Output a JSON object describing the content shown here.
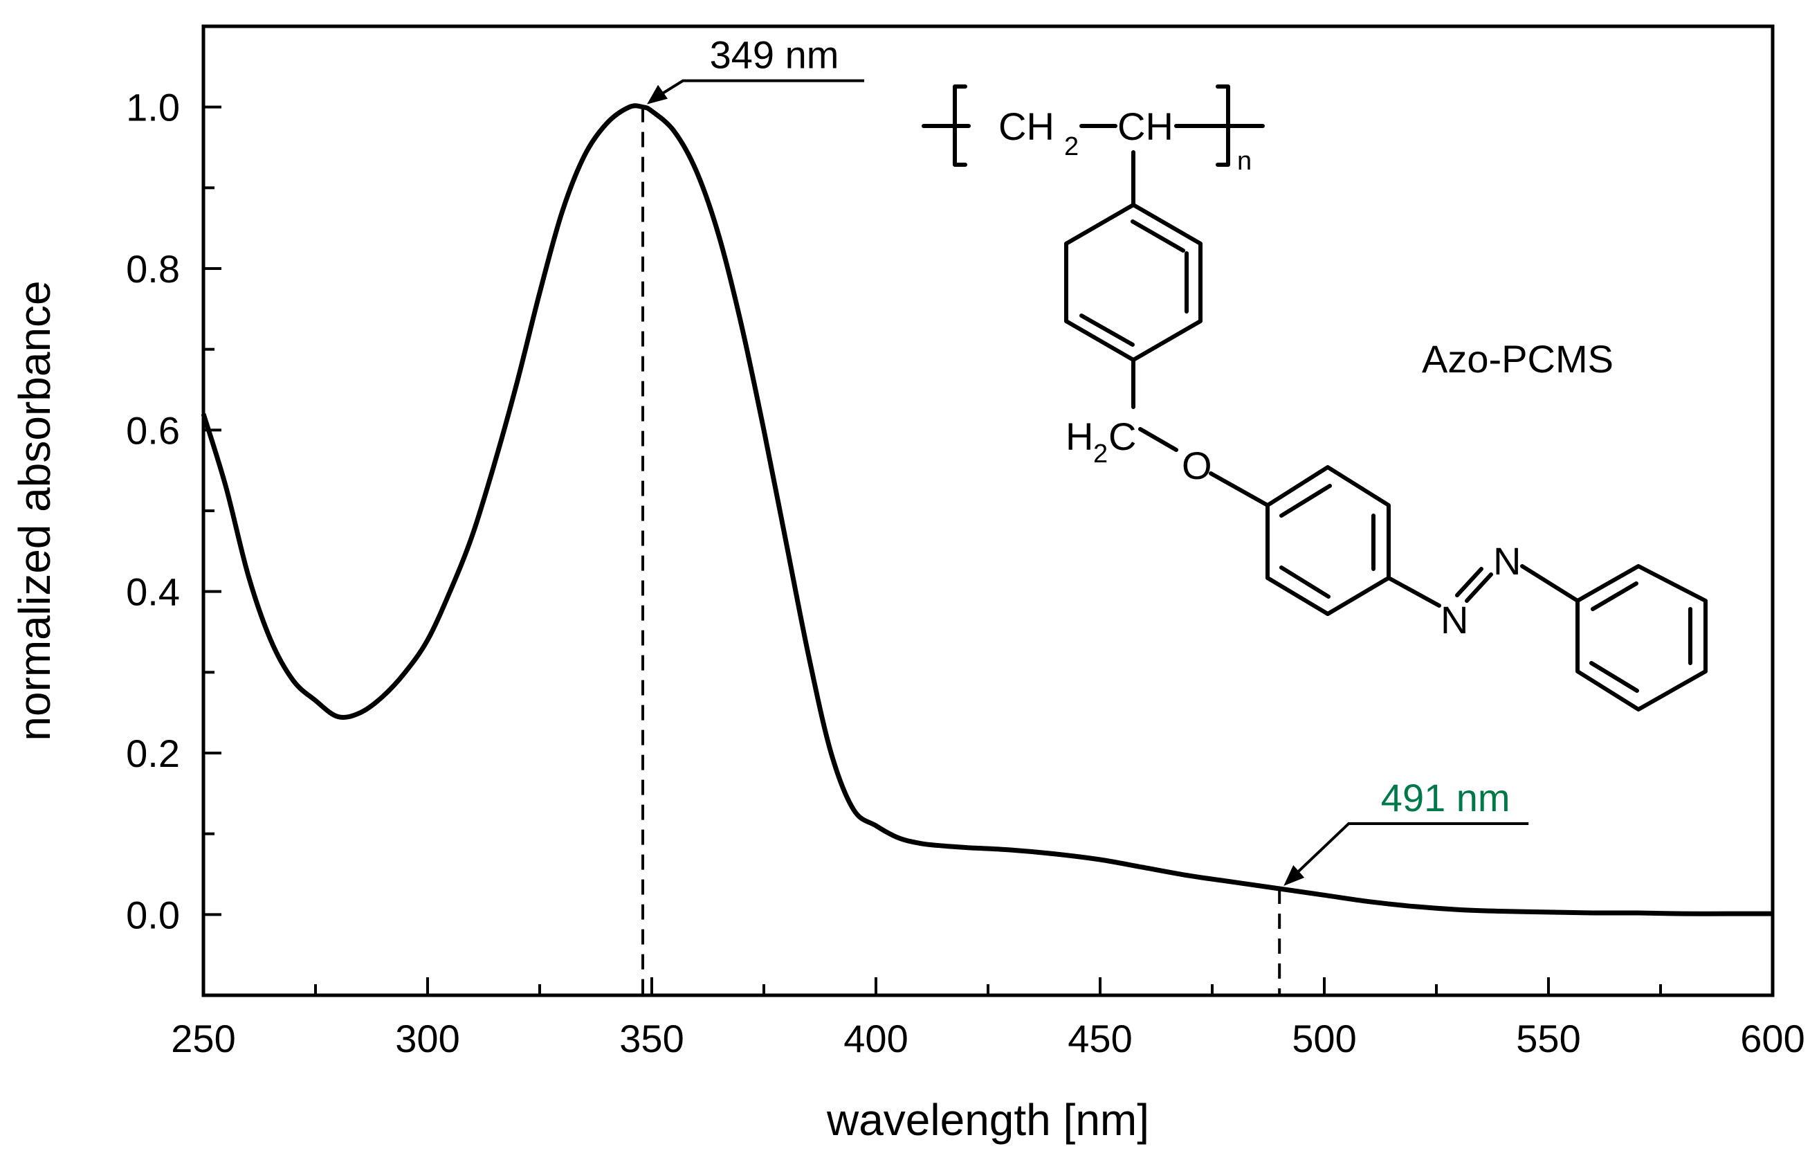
{
  "chart_data": {
    "type": "line",
    "xlabel": "wavelength [nm]",
    "ylabel": "normalized absorbance",
    "xlim": [
      250,
      600
    ],
    "ylim": [
      -0.1,
      1.1
    ],
    "x_ticks": [
      "250",
      "300",
      "350",
      "400",
      "450",
      "500",
      "550",
      "600"
    ],
    "y_ticks": [
      "0.0",
      "0.2",
      "0.4",
      "0.6",
      "0.8",
      "1.0"
    ],
    "grid": false,
    "series": [
      {
        "color": "#000000",
        "x": [
          250,
          255,
          260,
          265,
          270,
          275,
          280,
          285,
          290,
          295,
          300,
          305,
          310,
          315,
          320,
          325,
          330,
          335,
          340,
          345,
          348,
          350,
          355,
          360,
          365,
          370,
          375,
          380,
          385,
          390,
          395,
          400,
          405,
          410,
          415,
          420,
          430,
          440,
          450,
          460,
          470,
          480,
          490,
          500,
          510,
          520,
          530,
          540,
          550,
          560,
          570,
          580,
          590,
          600
        ],
        "y": [
          0.62,
          0.53,
          0.42,
          0.34,
          0.29,
          0.265,
          0.245,
          0.25,
          0.27,
          0.3,
          0.34,
          0.4,
          0.47,
          0.56,
          0.66,
          0.77,
          0.87,
          0.94,
          0.98,
          1.0,
          1.0,
          0.995,
          0.97,
          0.92,
          0.84,
          0.73,
          0.6,
          0.46,
          0.32,
          0.2,
          0.13,
          0.11,
          0.095,
          0.088,
          0.085,
          0.083,
          0.08,
          0.075,
          0.068,
          0.058,
          0.048,
          0.04,
          0.032,
          0.024,
          0.016,
          0.01,
          0.006,
          0.004,
          0.003,
          0.002,
          0.002,
          0.001,
          0.001,
          0.001
        ]
      }
    ],
    "annotations": [
      {
        "text": "349 nm",
        "x": 348,
        "y": 1.0,
        "color": "#000000"
      },
      {
        "text": "491 nm",
        "x": 490,
        "y": 0.032,
        "color": "#00794a"
      }
    ],
    "inset_label": "Azo-PCMS"
  },
  "structure": {
    "ch2": "CH",
    "ch": "CH",
    "sub2": "2",
    "n": "n",
    "h2c_h": "H",
    "h2c_c": "C",
    "oxygen": "O",
    "nitrogen": "N",
    "oxygen_color": "#e3000f",
    "nitrogen_color": "#004b9b"
  }
}
